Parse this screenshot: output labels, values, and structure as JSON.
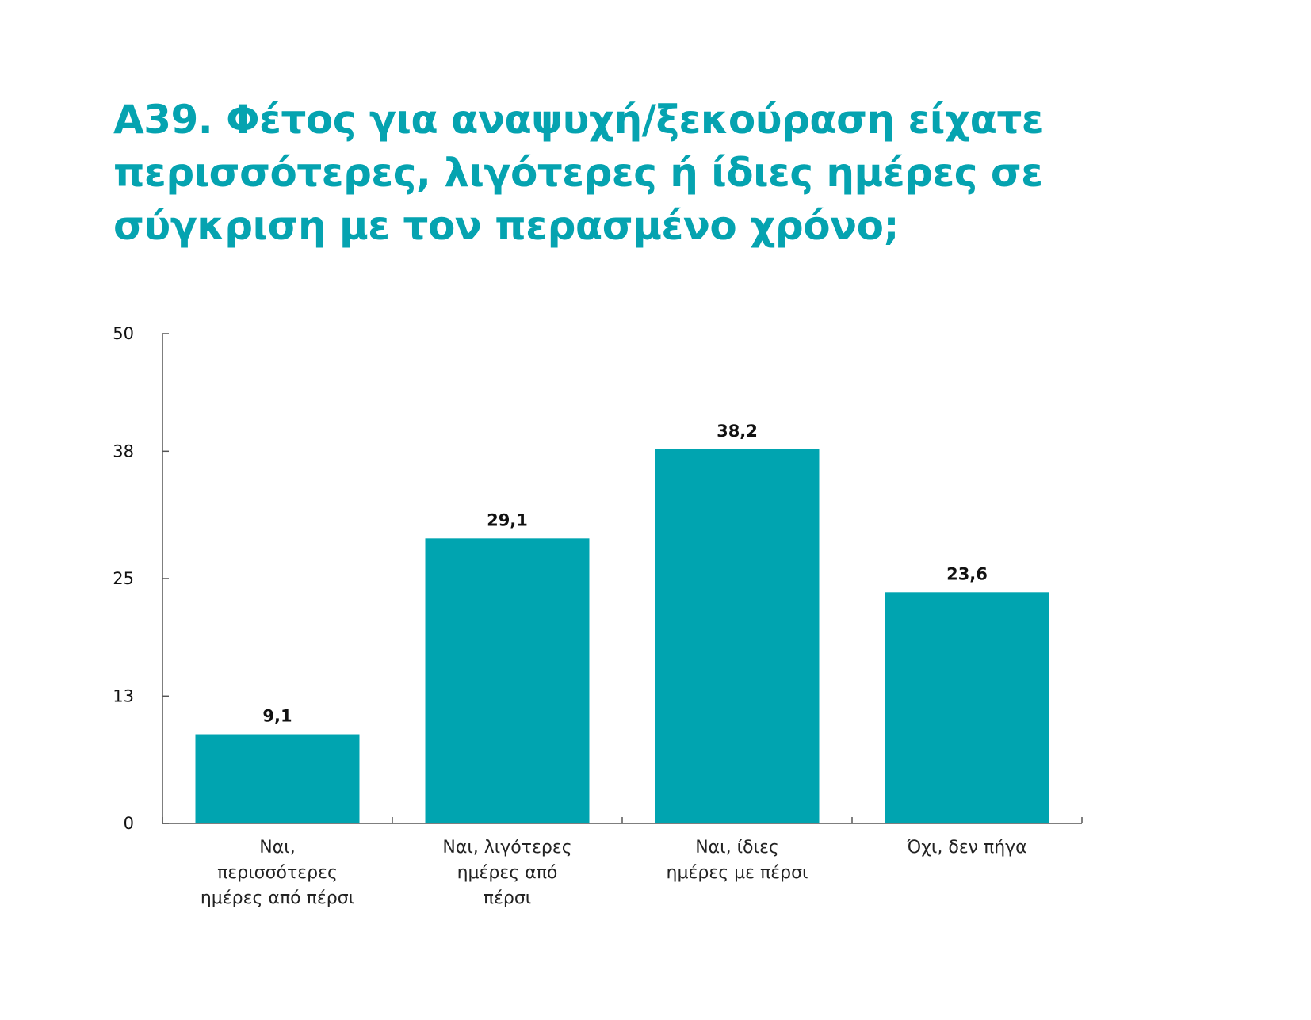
{
  "title": "A39. Φέτος για αναψυχή/ξεκούραση είχατε περισσότερες, λιγότερες ή ίδιες ημέρες σε σύγκριση με τον περασμένο χρόνο;",
  "colors": {
    "title": "#05a3b0",
    "bar": "#00a4b0",
    "axis": "#555555",
    "text": "#111111"
  },
  "chart_data": {
    "type": "bar",
    "categories": [
      "Ναι, περισσότερες ημέρες από πέρσι",
      "Ναι, λιγότερες ημέρες από πέρσι",
      "Ναι, ίδιες ημέρες με πέρσι",
      "Όχι, δεν πήγα"
    ],
    "category_lines": [
      [
        "Ναι,",
        "περισσότερες",
        "ημέρες από πέρσι"
      ],
      [
        "Ναι, λιγότερες",
        "ημέρες από",
        "πέρσι"
      ],
      [
        "Ναι, ίδιες",
        "ημέρες με πέρσι"
      ],
      [
        "Όχι, δεν πήγα"
      ]
    ],
    "values": [
      9.1,
      29.1,
      38.2,
      23.6
    ],
    "data_labels": [
      "9,1",
      "29,1",
      "38,2",
      "23,6"
    ],
    "yticks": [
      0,
      13,
      25,
      38,
      50
    ],
    "ylim": [
      0,
      50
    ],
    "title": "A39. Φέτος για αναψυχή/ξεκούραση είχατε περισσότερες, λιγότερες ή ίδιες ημέρες σε σύγκριση με τον περασμένο χρόνο;",
    "xlabel": "",
    "ylabel": "",
    "grid": false,
    "legend": "none"
  }
}
